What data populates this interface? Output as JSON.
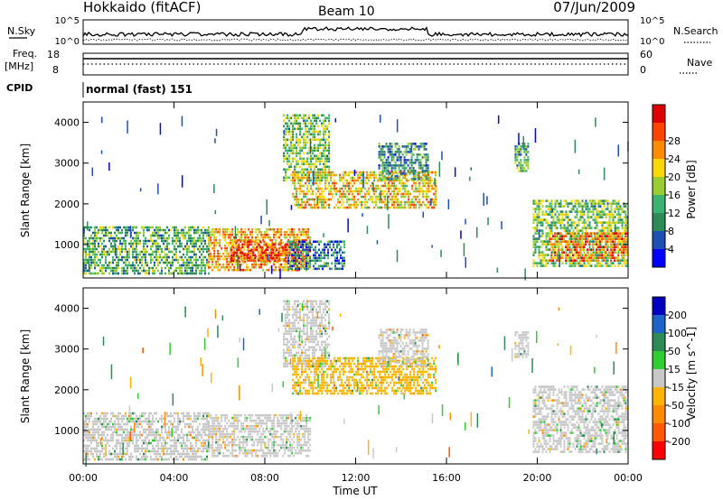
{
  "header": {
    "station": "Hokkaido (fitACF)",
    "beam": "Beam 10",
    "date": "07/Jun/2009"
  },
  "noise_panel": {
    "left_label": "N.Sky",
    "right_label": "N.Search",
    "left_ticks": [
      "10^5",
      "10^0"
    ],
    "right_ticks": [
      "10^5",
      "10^0"
    ]
  },
  "freq_panel": {
    "left_label_1": "Freq.",
    "left_label_2": "[MHz]",
    "right_label": "Nave",
    "left_ticks": [
      "18",
      "8"
    ],
    "right_ticks": [
      "60",
      "0"
    ]
  },
  "cpid_panel": {
    "label": "CPID",
    "value": "normal (fast) 151"
  },
  "time_axis": {
    "label": "Time UT",
    "ticks": [
      "00:00",
      "04:00",
      "08:00",
      "12:00",
      "16:00",
      "20:00",
      "00:00"
    ]
  },
  "range_axis": {
    "label": "Slant Range [km]",
    "ticks": [
      "1000",
      "2000",
      "3000",
      "4000"
    ]
  },
  "colors": {
    "power": [
      "#0000ff",
      "#1e50b4",
      "#2e8b57",
      "#3cb371",
      "#9acd32",
      "#ffd700",
      "#ff8c00",
      "#ff4500",
      "#e00000"
    ],
    "velocity": [
      "#ff0000",
      "#ff5a00",
      "#ff8c00",
      "#ffb400",
      "#c8c8c8",
      "#32cd32",
      "#2e8b57",
      "#1e64c8",
      "#0000c0"
    ]
  },
  "chart_data": [
    {
      "type": "heatmap",
      "quantity": "Power",
      "colorbar_label": "Power [dB]",
      "colorbar_ticks": [
        "4",
        "8",
        "12",
        "16",
        "20",
        "24",
        "28"
      ],
      "value_range": [
        0,
        32
      ],
      "xlabel": "",
      "ylabel": "Slant Range [km]",
      "xlim": [
        0,
        24
      ],
      "ylim": [
        180,
        4500
      ],
      "regions": [
        {
          "t0": 0.0,
          "t1": 5.5,
          "r0": 300,
          "r1": 1450,
          "level": 12
        },
        {
          "t0": 5.5,
          "t1": 10.0,
          "r0": 380,
          "r1": 1400,
          "level": 22
        },
        {
          "t0": 6.5,
          "t1": 9.5,
          "r0": 600,
          "r1": 1100,
          "level": 27
        },
        {
          "t0": 9.0,
          "t1": 11.5,
          "r0": 400,
          "r1": 1100,
          "level": 8
        },
        {
          "t0": 8.8,
          "t1": 10.8,
          "r0": 2600,
          "r1": 4200,
          "level": 14
        },
        {
          "t0": 9.2,
          "t1": 15.5,
          "r0": 1900,
          "r1": 2800,
          "level": 20
        },
        {
          "t0": 13.0,
          "t1": 15.2,
          "r0": 2600,
          "r1": 3500,
          "level": 10
        },
        {
          "t0": 19.0,
          "t1": 19.6,
          "r0": 2800,
          "r1": 3500,
          "level": 12
        },
        {
          "t0": 19.8,
          "t1": 24.0,
          "r0": 500,
          "r1": 2100,
          "level": 14
        },
        {
          "t0": 20.5,
          "t1": 24.0,
          "r0": 600,
          "r1": 1300,
          "level": 24
        }
      ]
    },
    {
      "type": "heatmap",
      "quantity": "Velocity",
      "colorbar_label": "Velocity [m s^-1]",
      "colorbar_ticks": [
        "200",
        "100",
        "50",
        "15",
        "-15",
        "-50",
        "-100",
        "-200"
      ],
      "value_range": [
        -250,
        250
      ],
      "xlabel": "Time UT",
      "ylabel": "Slant Range [km]",
      "xlim": [
        0,
        24
      ],
      "ylim": [
        180,
        4500
      ],
      "regions": [
        {
          "t0": 0.0,
          "t1": 5.5,
          "r0": 300,
          "r1": 1450,
          "level": 0
        },
        {
          "t0": 5.5,
          "t1": 10.0,
          "r0": 380,
          "r1": 1400,
          "level": 0
        },
        {
          "t0": 8.8,
          "t1": 10.8,
          "r0": 2600,
          "r1": 4200,
          "level": 0
        },
        {
          "t0": 9.2,
          "t1": 15.5,
          "r0": 1900,
          "r1": 2800,
          "level": -30
        },
        {
          "t0": 13.0,
          "t1": 15.2,
          "r0": 2600,
          "r1": 3500,
          "level": -20
        },
        {
          "t0": 19.0,
          "t1": 19.6,
          "r0": 2800,
          "r1": 3500,
          "level": 0
        },
        {
          "t0": 19.8,
          "t1": 24.0,
          "r0": 500,
          "r1": 2100,
          "level": 0
        }
      ]
    }
  ]
}
